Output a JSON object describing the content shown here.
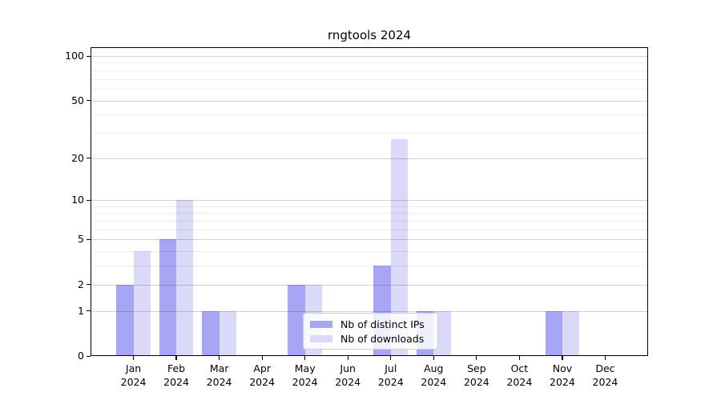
{
  "chart_data": {
    "type": "bar",
    "title": "rngtools 2024",
    "categories": [
      "Jan 2024",
      "Feb 2024",
      "Mar 2024",
      "Apr 2024",
      "May 2024",
      "Jun 2024",
      "Jul 2024",
      "Aug 2024",
      "Sep 2024",
      "Oct 2024",
      "Nov 2024",
      "Dec 2024"
    ],
    "month_labels": [
      "Jan",
      "Feb",
      "Mar",
      "Apr",
      "May",
      "Jun",
      "Jul",
      "Aug",
      "Sep",
      "Oct",
      "Nov",
      "Dec"
    ],
    "year_label": "2024",
    "series": [
      {
        "name": "Nb of distinct IPs",
        "color": "#a6a6f4",
        "values": [
          2,
          5,
          1,
          0,
          2,
          0,
          3,
          1,
          0,
          0,
          1,
          0
        ]
      },
      {
        "name": "Nb of downloads",
        "color": "#dadaf8",
        "values": [
          4,
          10,
          1,
          0,
          2,
          0,
          27,
          1,
          0,
          0,
          1,
          0
        ]
      }
    ],
    "y_scale": "log10(1+y)",
    "y_axis_ticks": [
      0,
      1,
      2,
      5,
      10,
      20,
      50,
      100
    ],
    "y_minor_gridlines": [
      3,
      4,
      6,
      7,
      8,
      9,
      30,
      40,
      60,
      70,
      80,
      90
    ],
    "ylim": [
      0,
      115
    ],
    "xlabel": "",
    "ylabel": "",
    "grid": true,
    "legend_position": "lower center"
  },
  "legend": {
    "items": [
      {
        "label": "Nb of distinct IPs",
        "color": "#a6a6f4"
      },
      {
        "label": "Nb of downloads",
        "color": "#dadaf8"
      }
    ]
  }
}
